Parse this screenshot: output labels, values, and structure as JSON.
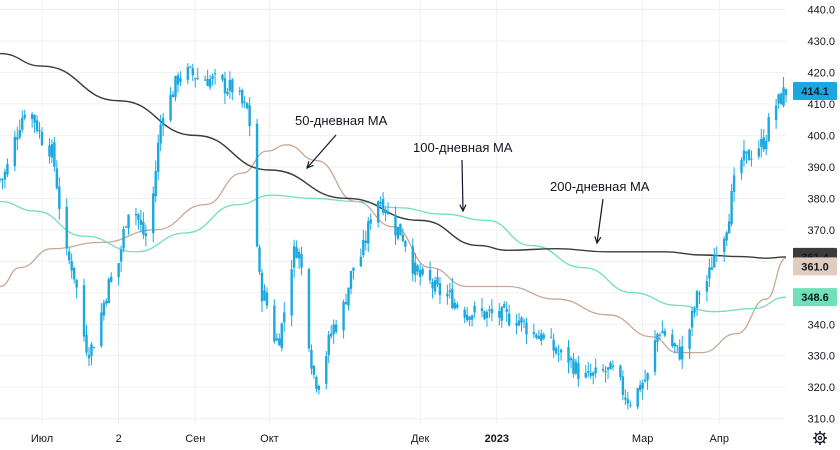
{
  "chart_data": {
    "type": "candlestick",
    "grid": true,
    "y_axis_position": "right",
    "ylim": [
      308,
      443
    ],
    "y_ticks": [
      "310.0",
      "320.0",
      "330.0",
      "340.0",
      "350.0",
      "360.0",
      "370.0",
      "380.0",
      "390.0",
      "400.0",
      "410.0",
      "420.0",
      "430.0",
      "440.0"
    ],
    "x_labels": [
      "Июл",
      "2",
      "Сен",
      "Окт",
      "Дек",
      "2023",
      "Мар",
      "Апр"
    ],
    "x_label_dates": [
      "2022-07-01",
      "2022-08-01",
      "2022-09-01",
      "2022-10-01",
      "2022-12-01",
      "2023-01-01",
      "2023-03-01",
      "2023-04-01"
    ],
    "x_range": [
      "2022-06-14",
      "2023-04-28"
    ],
    "colors": {
      "up": "#22ab94",
      "down": "#22ab94",
      "candle": "#1ba8e0",
      "ma50": "#c8a896",
      "ma100": "#6fe0b8",
      "ma200": "#3b3b3b",
      "grid": "#eef0f3"
    },
    "price_anchors": [
      [
        "2022-06-14",
        386
      ],
      [
        "2022-06-25",
        408
      ],
      [
        "2022-07-04",
        396
      ],
      [
        "2022-07-12",
        360
      ],
      [
        "2022-07-20",
        332
      ],
      [
        "2022-07-30",
        355
      ],
      [
        "2022-08-06",
        378
      ],
      [
        "2022-08-12",
        368
      ],
      [
        "2022-08-20",
        410
      ],
      [
        "2022-08-27",
        420
      ],
      [
        "2022-09-05",
        418
      ],
      [
        "2022-09-16",
        415
      ],
      [
        "2022-09-22",
        408
      ],
      [
        "2022-09-28",
        350
      ],
      [
        "2022-10-04",
        335
      ],
      [
        "2022-10-12",
        364
      ],
      [
        "2022-10-20",
        322
      ],
      [
        "2022-10-28",
        340
      ],
      [
        "2022-11-06",
        361
      ],
      [
        "2022-11-14",
        380
      ],
      [
        "2022-11-22",
        370
      ],
      [
        "2022-12-01",
        355
      ],
      [
        "2022-12-10",
        350
      ],
      [
        "2022-12-20",
        344
      ],
      [
        "2022-12-30",
        343
      ],
      [
        "2023-01-08",
        342
      ],
      [
        "2023-01-17",
        337
      ],
      [
        "2023-01-28",
        330
      ],
      [
        "2023-02-06",
        323
      ],
      [
        "2023-02-16",
        325
      ],
      [
        "2023-02-24",
        316
      ],
      [
        "2023-03-02",
        322
      ],
      [
        "2023-03-08",
        338
      ],
      [
        "2023-03-16",
        331
      ],
      [
        "2023-03-26",
        353
      ],
      [
        "2023-04-02",
        368
      ],
      [
        "2023-04-10",
        392
      ],
      [
        "2023-04-18",
        397
      ],
      [
        "2023-04-24",
        410
      ],
      [
        "2023-04-28",
        414
      ]
    ],
    "series": [
      {
        "name": "50-дневная МА",
        "points": [
          [
            "2022-06-14",
            352
          ],
          [
            "2022-06-22",
            358
          ],
          [
            "2022-07-05",
            364
          ],
          [
            "2022-07-25",
            366
          ],
          [
            "2022-08-16",
            370
          ],
          [
            "2022-09-05",
            378
          ],
          [
            "2022-09-20",
            388
          ],
          [
            "2022-09-30",
            395
          ],
          [
            "2022-10-08",
            397
          ],
          [
            "2022-10-20",
            392
          ],
          [
            "2022-11-05",
            379
          ],
          [
            "2022-11-20",
            371
          ],
          [
            "2022-12-05",
            358
          ],
          [
            "2022-12-20",
            352
          ],
          [
            "2023-01-05",
            352
          ],
          [
            "2023-01-25",
            348
          ],
          [
            "2023-02-15",
            343
          ],
          [
            "2023-03-05",
            336
          ],
          [
            "2023-03-15",
            331
          ],
          [
            "2023-03-25",
            331
          ],
          [
            "2023-04-08",
            337
          ],
          [
            "2023-04-20",
            348
          ],
          [
            "2023-04-28",
            361
          ]
        ]
      },
      {
        "name": "100-дневная МА",
        "points": [
          [
            "2022-06-14",
            379
          ],
          [
            "2022-06-28",
            376
          ],
          [
            "2022-07-18",
            368
          ],
          [
            "2022-08-08",
            363
          ],
          [
            "2022-08-28",
            369
          ],
          [
            "2022-09-18",
            378
          ],
          [
            "2022-10-02",
            381
          ],
          [
            "2022-10-18",
            380
          ],
          [
            "2022-11-05",
            379
          ],
          [
            "2022-11-22",
            377
          ],
          [
            "2022-12-10",
            375
          ],
          [
            "2022-12-28",
            373
          ],
          [
            "2023-01-15",
            365
          ],
          [
            "2023-02-05",
            358
          ],
          [
            "2023-02-25",
            350
          ],
          [
            "2023-03-15",
            346
          ],
          [
            "2023-03-30",
            344
          ],
          [
            "2023-04-15",
            345
          ],
          [
            "2023-04-28",
            348.6
          ]
        ]
      },
      {
        "name": "200-дневная МА",
        "points": [
          [
            "2022-06-14",
            426
          ],
          [
            "2022-07-01",
            422
          ],
          [
            "2022-08-01",
            411
          ],
          [
            "2022-09-01",
            400
          ],
          [
            "2022-10-01",
            389
          ],
          [
            "2022-11-01",
            380
          ],
          [
            "2022-12-01",
            373
          ],
          [
            "2022-12-25",
            365
          ],
          [
            "2023-01-05",
            363.5
          ],
          [
            "2023-01-25",
            364
          ],
          [
            "2023-02-15",
            363
          ],
          [
            "2023-03-10",
            363
          ],
          [
            "2023-03-25",
            362
          ],
          [
            "2023-04-10",
            361.5
          ],
          [
            "2023-04-20",
            361
          ],
          [
            "2023-04-28",
            361.4
          ]
        ]
      }
    ],
    "annotations": [
      {
        "text": "50-дневная МА",
        "target_series": 0,
        "target_date": "2022-11-05",
        "target_value": 389
      },
      {
        "text": "100-дневная МА",
        "target_series": 1,
        "target_date": "2022-12-29",
        "target_value": 376
      },
      {
        "text": "200-дневная МА",
        "target_series": 2,
        "target_date": "2023-02-20",
        "target_value": 365
      }
    ],
    "last_value_badges": [
      {
        "value": "414.1",
        "color": "#1ba8e0",
        "text_color": "#ffffff",
        "y_value": 414.1
      },
      {
        "value": "361.4",
        "color": "#3b3b3b",
        "text_color": "#ffffff",
        "y_value": 361.4
      },
      {
        "value": "361.0",
        "color": "#e0cdbf",
        "text_color": "#131722",
        "y_value": 358.4
      },
      {
        "value": "348.6",
        "color": "#6fe0b8",
        "text_color": "#131722",
        "y_value": 348.6
      }
    ]
  },
  "toolbar": {
    "settings_icon": "gear-icon"
  }
}
